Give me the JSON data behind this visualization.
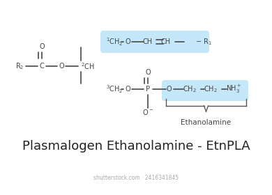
{
  "title": "Plasmalogen Ethanolamine - EtnPLA",
  "title_fontsize": 13,
  "title_color": "#222222",
  "bg_color": "#ffffff",
  "line_color": "#555555",
  "highlight_color": "#7ecef4",
  "highlight_alpha": 0.45,
  "bond_lw": 1.3,
  "font_size": 7.0,
  "label_color": "#444444",
  "ethanolamine_label": "Ethanolamine",
  "shutterstock_text": "shutterstock.com · 2416341845"
}
